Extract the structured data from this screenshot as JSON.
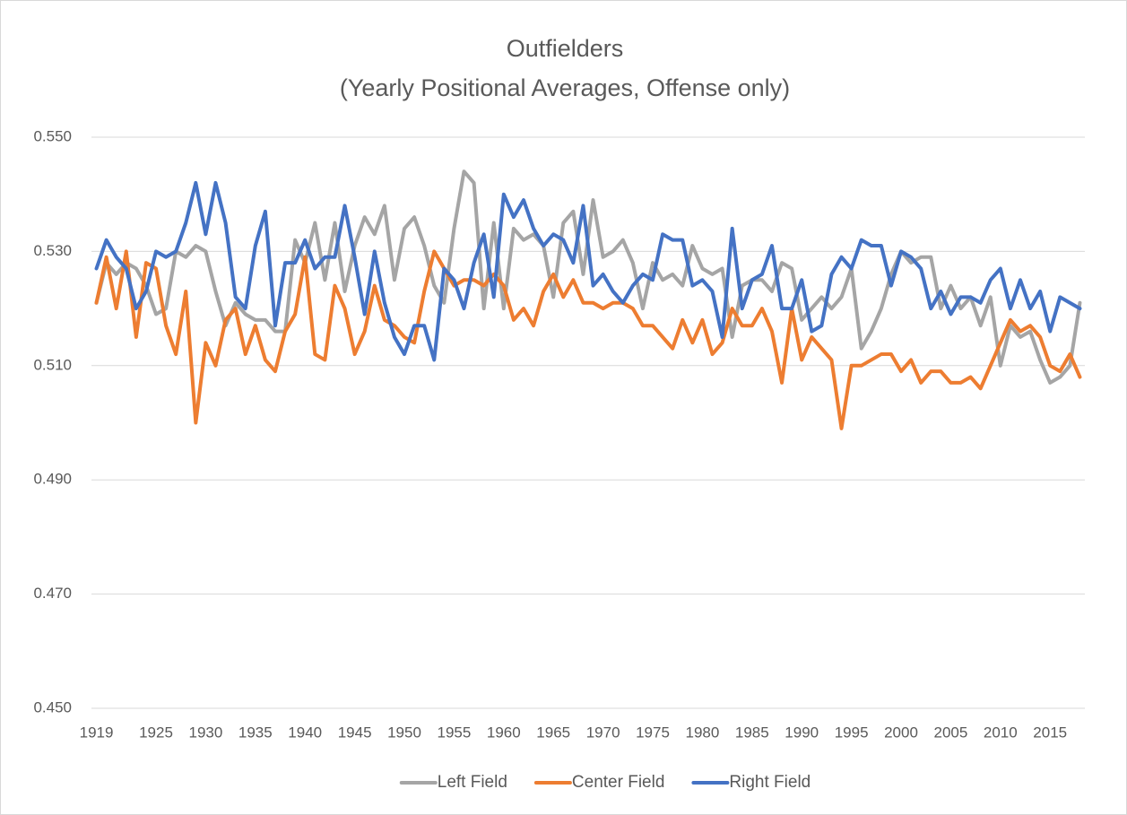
{
  "chart_data": {
    "type": "line",
    "title": "Outfielders",
    "subtitle": "(Yearly Positional Averages, Offense only)",
    "categories": [
      1919,
      null,
      null,
      null,
      null,
      null,
      1925,
      null,
      null,
      null,
      null,
      1930,
      null,
      null,
      null,
      null,
      1935,
      null,
      null,
      null,
      null,
      1940,
      null,
      null,
      null,
      null,
      1945,
      null,
      null,
      null,
      null,
      1950,
      null,
      null,
      null,
      null,
      1955,
      null,
      null,
      null,
      null,
      1960,
      null,
      null,
      null,
      null,
      1965,
      null,
      null,
      null,
      null,
      1970,
      null,
      null,
      null,
      null,
      1975,
      null,
      null,
      null,
      null,
      1980,
      null,
      null,
      null,
      null,
      1985,
      null,
      null,
      null,
      null,
      1990,
      null,
      null,
      null,
      null,
      1995,
      null,
      null,
      null,
      null,
      2000,
      null,
      null,
      null,
      null,
      2005,
      null,
      null,
      null,
      null,
      2010,
      null,
      null,
      null,
      null,
      2015,
      null,
      null,
      null
    ],
    "series": [
      {
        "name": "Left Field",
        "color": "#a5a5a5",
        "values": [
          0.521,
          0.528,
          0.526,
          0.528,
          0.527,
          0.524,
          0.519,
          0.52,
          0.53,
          0.529,
          0.531,
          0.53,
          0.523,
          0.517,
          0.521,
          0.519,
          0.518,
          0.518,
          0.516,
          0.516,
          0.532,
          0.528,
          0.535,
          0.525,
          0.535,
          0.523,
          0.531,
          0.536,
          0.533,
          0.538,
          0.525,
          0.534,
          0.536,
          0.531,
          0.524,
          0.521,
          0.534,
          0.544,
          0.542,
          0.52,
          0.535,
          0.52,
          0.534,
          0.532,
          0.533,
          0.531,
          0.522,
          0.535,
          0.537,
          0.526,
          0.539,
          0.529,
          0.53,
          0.532,
          0.528,
          0.52,
          0.528,
          0.525,
          0.526,
          0.524,
          0.531,
          0.527,
          0.526,
          0.527,
          0.515,
          0.524,
          0.525,
          0.525,
          0.523,
          0.528,
          0.527,
          0.518,
          0.52,
          0.522,
          0.52,
          0.522,
          0.527,
          0.513,
          0.516,
          0.52,
          0.526,
          0.53,
          0.528,
          0.529,
          0.529,
          0.52,
          0.524,
          0.52,
          0.522,
          0.517,
          0.522,
          0.51,
          0.517,
          0.515,
          0.516,
          0.511,
          0.507,
          0.508,
          0.51,
          0.521
        ]
      },
      {
        "name": "Center Field",
        "color": "#ed7d31",
        "values": [
          0.521,
          0.529,
          0.52,
          0.53,
          0.515,
          0.528,
          0.527,
          0.517,
          0.512,
          0.523,
          0.5,
          0.514,
          0.51,
          0.518,
          0.52,
          0.512,
          0.517,
          0.511,
          0.509,
          0.516,
          0.519,
          0.529,
          0.512,
          0.511,
          0.524,
          0.52,
          0.512,
          0.516,
          0.524,
          0.518,
          0.517,
          0.515,
          0.514,
          0.523,
          0.53,
          0.527,
          0.524,
          0.525,
          0.525,
          0.524,
          0.526,
          0.524,
          0.518,
          0.52,
          0.517,
          0.523,
          0.526,
          0.522,
          0.525,
          0.521,
          0.521,
          0.52,
          0.521,
          0.521,
          0.52,
          0.517,
          0.517,
          0.515,
          0.513,
          0.518,
          0.514,
          0.518,
          0.512,
          0.514,
          0.52,
          0.517,
          0.517,
          0.52,
          0.516,
          0.507,
          0.52,
          0.511,
          0.515,
          0.513,
          0.511,
          0.499,
          0.51,
          0.51,
          0.511,
          0.512,
          0.512,
          0.509,
          0.511,
          0.507,
          0.509,
          0.509,
          0.507,
          0.507,
          0.508,
          0.506,
          0.51,
          0.514,
          0.518,
          0.516,
          0.517,
          0.515,
          0.51,
          0.509,
          0.512,
          0.508
        ]
      },
      {
        "name": "Right Field",
        "color": "#4472c4",
        "values": [
          0.527,
          0.532,
          0.529,
          0.527,
          0.52,
          0.523,
          0.53,
          0.529,
          0.53,
          0.535,
          0.542,
          0.533,
          0.542,
          0.535,
          0.522,
          0.52,
          0.531,
          0.537,
          0.517,
          0.528,
          0.528,
          0.532,
          0.527,
          0.529,
          0.529,
          0.538,
          0.529,
          0.519,
          0.53,
          0.521,
          0.515,
          0.512,
          0.517,
          0.517,
          0.511,
          0.527,
          0.525,
          0.52,
          0.528,
          0.533,
          0.522,
          0.54,
          0.536,
          0.539,
          0.534,
          0.531,
          0.533,
          0.532,
          0.528,
          0.538,
          0.524,
          0.526,
          0.523,
          0.521,
          0.524,
          0.526,
          0.525,
          0.533,
          0.532,
          0.532,
          0.524,
          0.525,
          0.523,
          0.515,
          0.534,
          0.52,
          0.525,
          0.526,
          0.531,
          0.52,
          0.52,
          0.525,
          0.516,
          0.517,
          0.526,
          0.529,
          0.527,
          0.532,
          0.531,
          0.531,
          0.524,
          0.53,
          0.529,
          0.527,
          0.52,
          0.523,
          0.519,
          0.522,
          0.522,
          0.521,
          0.525,
          0.527,
          0.52,
          0.525,
          0.52,
          0.523,
          0.516,
          0.522,
          0.521,
          0.52
        ]
      }
    ],
    "ylim": [
      0.45,
      0.55
    ],
    "yticks": [
      {
        "value": 0.45,
        "label": "0.450"
      },
      {
        "value": 0.47,
        "label": "0.470"
      },
      {
        "value": 0.49,
        "label": "0.490"
      },
      {
        "value": 0.51,
        "label": "0.510"
      },
      {
        "value": 0.53,
        "label": "0.530"
      },
      {
        "value": 0.55,
        "label": "0.550"
      }
    ],
    "grid": true,
    "legend": "bottom"
  }
}
